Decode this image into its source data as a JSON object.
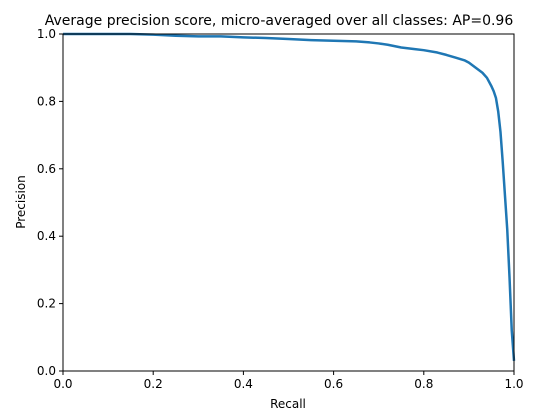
{
  "chart_data": {
    "type": "line",
    "title": "Average precision score, micro-averaged over all classes: AP=0.96",
    "xlabel": "Recall",
    "ylabel": "Precision",
    "xlim": [
      0.0,
      1.0
    ],
    "ylim": [
      0.0,
      1.0
    ],
    "grid": false,
    "x_ticks": [
      "0.0",
      "0.2",
      "0.4",
      "0.6",
      "0.8",
      "1.0"
    ],
    "y_ticks": [
      "0.0",
      "0.2",
      "0.4",
      "0.6",
      "0.8",
      "1.0"
    ],
    "series": [
      {
        "color": "#1f77b4",
        "x": [
          0.0,
          0.05,
          0.1,
          0.15,
          0.2,
          0.25,
          0.3,
          0.35,
          0.4,
          0.45,
          0.5,
          0.55,
          0.6,
          0.65,
          0.68,
          0.7,
          0.72,
          0.75,
          0.78,
          0.8,
          0.83,
          0.85,
          0.87,
          0.89,
          0.9,
          0.91,
          0.92,
          0.93,
          0.94,
          0.95,
          0.955,
          0.96,
          0.965,
          0.97,
          0.975,
          0.98,
          0.985,
          0.99,
          0.995,
          1.0
        ],
        "y": [
          1.0,
          1.0,
          1.0,
          1.0,
          0.998,
          0.995,
          0.993,
          0.993,
          0.99,
          0.988,
          0.985,
          0.982,
          0.98,
          0.978,
          0.975,
          0.972,
          0.968,
          0.96,
          0.955,
          0.952,
          0.945,
          0.938,
          0.93,
          0.922,
          0.915,
          0.905,
          0.895,
          0.885,
          0.87,
          0.845,
          0.83,
          0.81,
          0.77,
          0.71,
          0.62,
          0.52,
          0.42,
          0.28,
          0.12,
          0.03
        ]
      }
    ]
  }
}
